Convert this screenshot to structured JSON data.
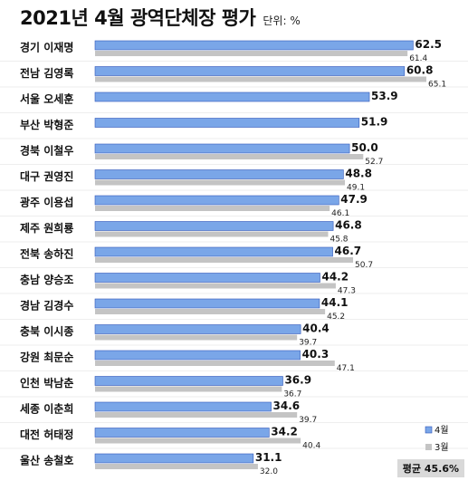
{
  "header": {
    "title": "2021년 4월 광역단체장 평가",
    "unit": "단위: %"
  },
  "footer": {
    "average": "평균 45.6%"
  },
  "colors": {
    "april": "#7aa6e8",
    "march": "#c4c4c4",
    "border": "#2f55b8",
    "gridline": "#eeeeee"
  },
  "chart_data": {
    "type": "bar",
    "orientation": "horizontal",
    "categories": [
      "경기 이재명",
      "전남 김영록",
      "서울 오세훈",
      "부산 박형준",
      "경북 이철우",
      "대구 권영진",
      "광주 이용섭",
      "제주 원희룡",
      "전북 송하진",
      "충남 양승조",
      "경남 김경수",
      "충북 이시종",
      "강원 최문순",
      "인천 박남춘",
      "세종 이춘희",
      "대전 허태정",
      "울산 송철호"
    ],
    "series": [
      {
        "name": "4월",
        "values": [
          62.5,
          60.8,
          53.9,
          51.9,
          50.0,
          48.8,
          47.9,
          46.8,
          46.7,
          44.2,
          44.1,
          40.4,
          40.3,
          36.9,
          34.6,
          34.2,
          31.1
        ]
      },
      {
        "name": "3월",
        "values": [
          61.4,
          65.1,
          null,
          null,
          52.7,
          49.1,
          46.1,
          45.8,
          50.7,
          47.3,
          45.2,
          39.7,
          47.1,
          36.7,
          39.7,
          40.4,
          32.0
        ]
      }
    ],
    "value_labels_april": [
      "62.5",
      "60.8",
      "53.9",
      "51.9",
      "50.0",
      "48.8",
      "47.9",
      "46.8",
      "46.7",
      "44.2",
      "44.1",
      "40.4",
      "40.3",
      "36.9",
      "34.6",
      "34.2",
      "31.1"
    ],
    "value_labels_march": [
      "61.4",
      "65.1",
      "",
      "",
      "52.7",
      "49.1",
      "46.1",
      "45.8",
      "50.7",
      "47.3",
      "45.2",
      "39.7",
      "47.1",
      "36.7",
      "39.7",
      "40.4",
      "32.0"
    ],
    "xlim": [
      0,
      65.1
    ],
    "grid": false,
    "legend_position": "bottom-right"
  }
}
